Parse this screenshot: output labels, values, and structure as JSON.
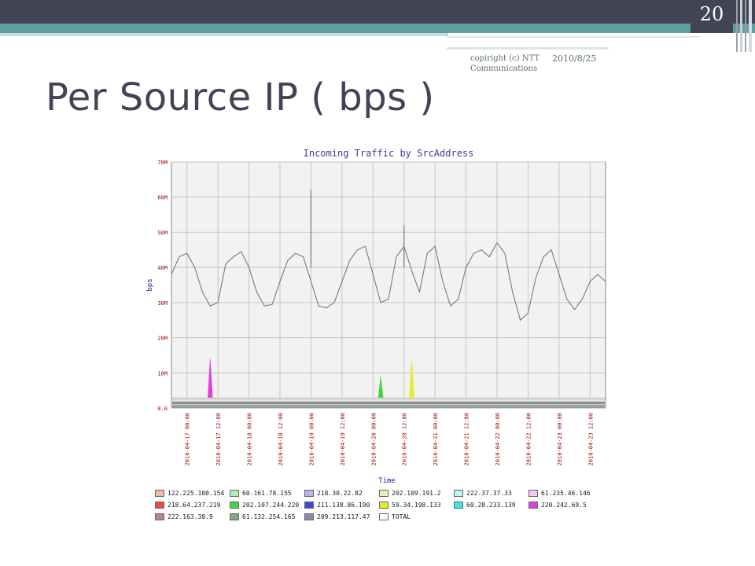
{
  "slide": {
    "page_number": "20",
    "copyright": "copiright (c) NTT Communications",
    "date": "2010/8/25",
    "title": "Per Source IP ( bps )"
  },
  "colors": {
    "topbar": "#424456",
    "teal": "#5f9ea0",
    "plot_bg": "#f2f2f2",
    "grid": "#c4c4c4",
    "total_line": "#7a7a7a",
    "axis_text": "#9b0000",
    "chart_title": "#3a3a9a"
  },
  "chart_data": {
    "type": "area",
    "title": "Incoming Traffic by SrcAddress",
    "xlabel": "Time",
    "ylabel": "bps",
    "ylim": [
      0,
      70000000
    ],
    "y_ticks": [
      {
        "value": 0,
        "label": "0.0"
      },
      {
        "value": 10000000,
        "label": "10M"
      },
      {
        "value": 20000000,
        "label": "20M"
      },
      {
        "value": 30000000,
        "label": "30M"
      },
      {
        "value": 40000000,
        "label": "40M"
      },
      {
        "value": 50000000,
        "label": "50M"
      },
      {
        "value": 60000000,
        "label": "60M"
      },
      {
        "value": 70000000,
        "label": "70M"
      }
    ],
    "xlim": [
      "2010-04-16 18:00",
      "2010-04-23 18:00"
    ],
    "x_ticks": [
      "2010-04-17 00:00",
      "2010-04-17 12:00",
      "2010-04-18 00:00",
      "2010-04-18 12:00",
      "2010-04-19 00:00",
      "2010-04-19 12:00",
      "2010-04-20 00:00",
      "2010-04-20 12:00",
      "2010-04-21 00:00",
      "2010-04-21 12:00",
      "2010-04-22 00:00",
      "2010-04-22 12:00",
      "2010-04-23 00:00",
      "2010-04-23 12:00"
    ],
    "grid": true,
    "legend_position": "bottom",
    "legend": [
      {
        "name": "122.225.100.154",
        "color": "#f4b8ae"
      },
      {
        "name": "60.161.78.155",
        "color": "#b6ecb6"
      },
      {
        "name": "218.30.22.82",
        "color": "#b4b8ee"
      },
      {
        "name": "202.109.191.2",
        "color": "#f4ecbc"
      },
      {
        "name": "222.37.37.33",
        "color": "#c0f4f4"
      },
      {
        "name": "61.235.46.146",
        "color": "#f6c4f6"
      },
      {
        "name": "218.64.237.219",
        "color": "#ea4a4a"
      },
      {
        "name": "202.107.244.220",
        "color": "#42d442"
      },
      {
        "name": "211.138.86.190",
        "color": "#4444dc"
      },
      {
        "name": "59.34.198.133",
        "color": "#eaea2a"
      },
      {
        "name": "60.28.233.139",
        "color": "#3ae6e6"
      },
      {
        "name": "220.242.69.5",
        "color": "#e040e0"
      },
      {
        "name": "222.163.38.9",
        "color": "#b88a84"
      },
      {
        "name": "61.132.254.165",
        "color": "#7fa87f"
      },
      {
        "name": "209.213.117.47",
        "color": "#8a8ab0"
      },
      {
        "name": "TOTAL",
        "color": "#ffffff"
      }
    ],
    "total_series": {
      "name": "TOTAL",
      "x": [
        "2010-04-16 18:00",
        "2010-04-16 21:00",
        "2010-04-17 00:00",
        "2010-04-17 03:00",
        "2010-04-17 06:00",
        "2010-04-17 09:00",
        "2010-04-17 12:00",
        "2010-04-17 15:00",
        "2010-04-17 18:00",
        "2010-04-17 21:00",
        "2010-04-18 00:00",
        "2010-04-18 03:00",
        "2010-04-18 06:00",
        "2010-04-18 09:00",
        "2010-04-18 12:00",
        "2010-04-18 15:00",
        "2010-04-18 18:00",
        "2010-04-18 21:00",
        "2010-04-19 00:00",
        "2010-04-19 03:00",
        "2010-04-19 06:00",
        "2010-04-19 09:00",
        "2010-04-19 12:00",
        "2010-04-19 15:00",
        "2010-04-19 18:00",
        "2010-04-19 21:00",
        "2010-04-20 00:00",
        "2010-04-20 03:00",
        "2010-04-20 06:00",
        "2010-04-20 09:00",
        "2010-04-20 12:00",
        "2010-04-20 15:00",
        "2010-04-20 18:00",
        "2010-04-20 21:00",
        "2010-04-21 00:00",
        "2010-04-21 03:00",
        "2010-04-21 06:00",
        "2010-04-21 09:00",
        "2010-04-21 12:00",
        "2010-04-21 15:00",
        "2010-04-21 18:00",
        "2010-04-21 21:00",
        "2010-04-22 00:00",
        "2010-04-22 03:00",
        "2010-04-22 06:00",
        "2010-04-22 09:00",
        "2010-04-22 12:00",
        "2010-04-22 15:00",
        "2010-04-22 18:00",
        "2010-04-22 21:00",
        "2010-04-23 00:00",
        "2010-04-23 03:00",
        "2010-04-23 06:00",
        "2010-04-23 09:00",
        "2010-04-23 12:00",
        "2010-04-23 15:00",
        "2010-04-23 18:00"
      ],
      "y": [
        38000000,
        43000000,
        44000000,
        40000000,
        33000000,
        29000000,
        30000000,
        41000000,
        43000000,
        44500000,
        40000000,
        33000000,
        29000000,
        29500000,
        36000000,
        42000000,
        44000000,
        43000000,
        36000000,
        29000000,
        28500000,
        30000000,
        36000000,
        42000000,
        45000000,
        46000000,
        38000000,
        30000000,
        31000000,
        43000000,
        46000000,
        39000000,
        33000000,
        44000000,
        46000000,
        36000000,
        29000000,
        31000000,
        40000000,
        44000000,
        45000000,
        43000000,
        47000000,
        44000000,
        33000000,
        25000000,
        27000000,
        37000000,
        43000000,
        45000000,
        38000000,
        31000000,
        28000000,
        31000000,
        36000000,
        38000000,
        36000000
      ]
    },
    "spikes": [
      {
        "series": "TOTAL",
        "x": "2010-04-19 00:00",
        "y": 62000000
      },
      {
        "series": "TOTAL",
        "x": "2010-04-20 12:00",
        "y": 52000000
      },
      {
        "series": "220.242.69.5",
        "x": "2010-04-17 09:00",
        "y": 14000000
      },
      {
        "series": "59.34.198.133",
        "x": "2010-04-20 15:00",
        "y": 14000000
      },
      {
        "series": "202.107.244.220",
        "x": "2010-04-20 03:00",
        "y": 9000000
      }
    ],
    "stack_baseline_approx": 3000000
  }
}
